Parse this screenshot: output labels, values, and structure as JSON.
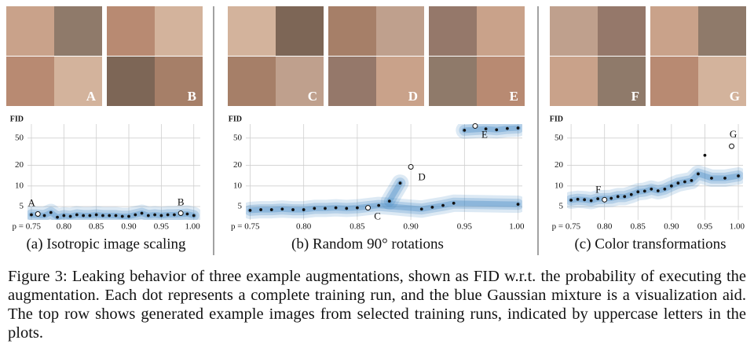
{
  "chart_data": [
    {
      "type": "scatter",
      "caption": "(a) Isotropic image scaling",
      "y_label": "FID",
      "log_y": true,
      "grid": true,
      "xlim": [
        0.744,
        1.01
      ],
      "ylim": [
        3.2,
        80
      ],
      "xticks": [
        {
          "value": 0.75,
          "label": "p = 0.75"
        },
        {
          "value": 0.8,
          "label": "0.80"
        },
        {
          "value": 0.85,
          "label": "0.85"
        },
        {
          "value": 0.9,
          "label": "0.90"
        },
        {
          "value": 0.95,
          "label": "0.95"
        },
        {
          "value": 1.0,
          "label": "1.00"
        }
      ],
      "yticks": [
        5,
        10,
        20,
        50
      ],
      "color": "#111111",
      "band_color": "#3f86c4",
      "series": [
        {
          "x": [
            0.75,
            0.77,
            0.78,
            0.79,
            0.8,
            0.81,
            0.82,
            0.83,
            0.84,
            0.85,
            0.86,
            0.87,
            0.88,
            0.89,
            0.9,
            0.91,
            0.92,
            0.93,
            0.94,
            0.95,
            0.96,
            0.97,
            0.99,
            1.0
          ],
          "values": [
            3.8,
            3.7,
            4.1,
            3.5,
            3.7,
            3.6,
            3.8,
            3.7,
            3.7,
            3.8,
            3.7,
            3.7,
            3.7,
            3.6,
            3.6,
            3.8,
            4.0,
            3.7,
            3.8,
            3.7,
            3.8,
            3.8,
            3.9,
            3.7
          ]
        }
      ],
      "highlights": [
        {
          "label": "A",
          "x": 0.76,
          "value": 3.9
        },
        {
          "label": "B",
          "x": 0.98,
          "value": 4.0
        }
      ]
    },
    {
      "type": "scatter",
      "caption": "(b) Random 90° rotations",
      "y_label": "FID",
      "log_y": true,
      "grid": true,
      "xlim": [
        0.746,
        1.004
      ],
      "ylim": [
        3.2,
        80
      ],
      "xticks": [
        {
          "value": 0.75,
          "label": "p = 0.75"
        },
        {
          "value": 0.8,
          "label": "0.80"
        },
        {
          "value": 0.85,
          "label": "0.85"
        },
        {
          "value": 0.9,
          "label": "0.90"
        },
        {
          "value": 0.95,
          "label": "0.95"
        },
        {
          "value": 1.0,
          "label": "1.00"
        }
      ],
      "yticks": [
        5,
        10,
        20,
        50
      ],
      "color": "#111111",
      "band_color": "#3f86c4",
      "series": [
        {
          "x": [
            0.75,
            0.76,
            0.77,
            0.78,
            0.79,
            0.8,
            0.81,
            0.82,
            0.83,
            0.84,
            0.85,
            0.87,
            0.91,
            0.92,
            0.93,
            0.94,
            1.0
          ],
          "values": [
            4.4,
            4.5,
            4.5,
            4.6,
            4.5,
            4.5,
            4.7,
            4.7,
            4.8,
            4.7,
            4.8,
            5.2,
            4.6,
            4.9,
            5.2,
            5.6,
            5.4
          ]
        },
        {
          "x": [
            0.88,
            0.89
          ],
          "values": [
            6,
            11
          ]
        },
        {
          "x": [
            0.95,
            0.97,
            0.98,
            0.99,
            1.0
          ],
          "values": [
            65,
            68,
            66,
            69,
            70
          ]
        }
      ],
      "highlights": [
        {
          "label": "C",
          "x": 0.86,
          "value": 4.8
        },
        {
          "label": "D",
          "x": 0.9,
          "value": 19
        },
        {
          "label": "E",
          "x": 0.96,
          "value": 75
        }
      ]
    },
    {
      "type": "scatter",
      "caption": "(c) Color transformations",
      "y_label": "FID",
      "log_y": true,
      "grid": true,
      "xlim": [
        0.744,
        1.007
      ],
      "ylim": [
        3.2,
        80
      ],
      "xticks": [
        {
          "value": 0.75,
          "label": "p = 0.75"
        },
        {
          "value": 0.8,
          "label": "0.80"
        },
        {
          "value": 0.85,
          "label": "0.85"
        },
        {
          "value": 0.9,
          "label": "0.90"
        },
        {
          "value": 0.95,
          "label": "0.95"
        },
        {
          "value": 1.0,
          "label": "1.00"
        }
      ],
      "yticks": [
        5,
        10,
        20,
        50
      ],
      "color": "#111111",
      "band_color": "#3f86c4",
      "series": [
        {
          "x": [
            0.75,
            0.76,
            0.77,
            0.78,
            0.79,
            0.81,
            0.82,
            0.83,
            0.84,
            0.85,
            0.86,
            0.87,
            0.88,
            0.89,
            0.9,
            0.91,
            0.92,
            0.93,
            0.94,
            0.96,
            0.98,
            1.0
          ],
          "values": [
            6.2,
            6.4,
            6.3,
            6.1,
            6.5,
            6.6,
            7,
            7,
            7.5,
            8.2,
            8.4,
            9,
            8.5,
            9,
            10,
            11,
            11.5,
            12,
            15,
            13,
            13,
            14
          ]
        },
        {
          "x": [
            0.95
          ],
          "values": [
            28
          ]
        }
      ],
      "highlights": [
        {
          "label": "F",
          "x": 0.8,
          "value": 6.3
        },
        {
          "label": "G",
          "x": 0.99,
          "value": 38
        }
      ]
    }
  ],
  "figure_caption": "Figure 3: Leaking behavior of three example augmentations, shown as FID w.r.t. the probability of executing the augmentation. Each dot represents a complete training run, and the blue Gaussian mixture is a visualization aid. The top row shows generated example images from selected training runs, indicated by uppercase letters in the plots."
}
